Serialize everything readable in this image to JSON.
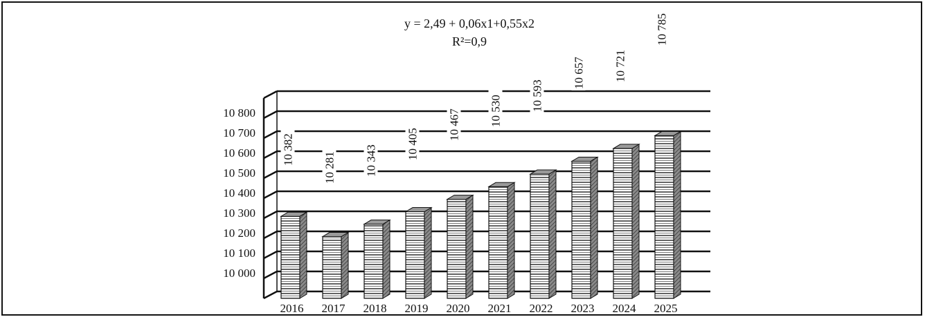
{
  "chart_data": {
    "type": "bar",
    "title": "y = 2,49 + 0,06x1+0,55x2",
    "subtitle": "R²=0,9",
    "categories": [
      "2016",
      "2017",
      "2018",
      "2019",
      "2020",
      "2021",
      "2022",
      "2023",
      "2024",
      "2025"
    ],
    "values": [
      10382,
      10281,
      10343,
      10405,
      10467,
      10530,
      10593,
      10657,
      10721,
      10785
    ],
    "data_labels": [
      "10 382",
      "10 281",
      "10 343",
      "10 405",
      "10 467",
      "10 530",
      "10 593",
      "10 657",
      "10 721",
      "10 785"
    ],
    "y_ticks": [
      10000,
      10100,
      10200,
      10300,
      10400,
      10500,
      10600,
      10700,
      10800
    ],
    "y_tick_labels": [
      "10 000",
      "10 100",
      "10 200",
      "10 300",
      "10 400",
      "10 500",
      "10 600",
      "10 700",
      "10 800"
    ],
    "ylim": [
      9900,
      10900
    ],
    "xlabel": "",
    "ylabel": "",
    "grid": true,
    "legend": "none",
    "style": "3d-columns",
    "bar_pattern": "horizontal-stripes",
    "colors": {
      "ink": "#111111",
      "bar_face": "#ffffff",
      "bar_side": "#7a7a7a",
      "bar_top": "#9a9a9a"
    }
  }
}
